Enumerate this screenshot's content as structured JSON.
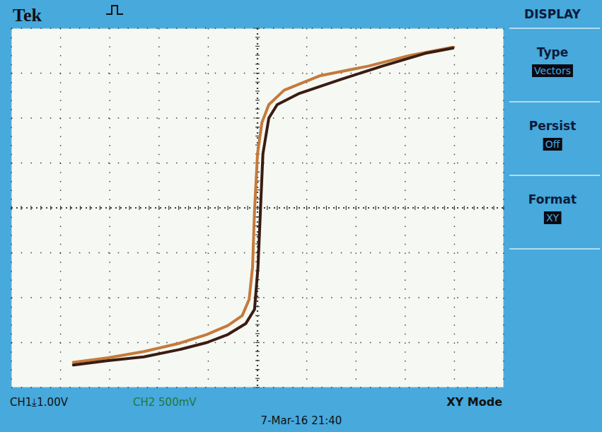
{
  "chart_data": {
    "type": "line",
    "title": "Tek",
    "x_label": "CH1⤓1.00V",
    "y_label": "CH2 500mV",
    "annotations": [
      "XY Mode",
      "7-Mar-16 21:40"
    ],
    "menu": {
      "title": "DISPLAY",
      "items": [
        {
          "label": "Type",
          "value": "Vectors"
        },
        {
          "label": "Persist",
          "value": "Off"
        },
        {
          "label": "Format",
          "value": "XY"
        }
      ]
    },
    "xlim": [
      -5,
      5
    ],
    "ylim": [
      -2,
      2
    ],
    "xticks": [
      -5,
      -4,
      -3,
      -2,
      -1,
      0,
      1,
      2,
      3,
      4,
      5
    ],
    "yticks": [
      -2,
      -1.5,
      -1,
      -0.5,
      0,
      0.5,
      1,
      1.5,
      2
    ],
    "grid": true,
    "tick_labels": false,
    "series": [
      {
        "color": "#c47a3c",
        "x": [
          -3.74,
          -3.03,
          -2.31,
          -1.6,
          -1.03,
          -0.6,
          -0.31,
          -0.17,
          -0.1,
          -0.06,
          0,
          0.09,
          0.23,
          0.54,
          1.26,
          2.26,
          3.11,
          3.97
        ],
        "values": [
          -1.72,
          -1.67,
          -1.6,
          -1.51,
          -1.41,
          -1.31,
          -1.2,
          -1.02,
          -0.66,
          -0.03,
          0.6,
          0.95,
          1.15,
          1.31,
          1.47,
          1.58,
          1.7,
          1.79
        ]
      },
      {
        "color": "#3a1c12",
        "x": [
          -3.74,
          -3.03,
          -2.31,
          -1.6,
          -1.03,
          -0.6,
          -0.24,
          -0.06,
          0.01,
          0.06,
          0.11,
          0.23,
          0.4,
          0.83,
          1.69,
          2.54,
          3.4,
          3.97
        ],
        "values": [
          -1.75,
          -1.7,
          -1.66,
          -1.58,
          -1.5,
          -1.41,
          -1.29,
          -1.13,
          -0.66,
          -0.03,
          0.6,
          1.0,
          1.15,
          1.27,
          1.43,
          1.58,
          1.72,
          1.78
        ]
      }
    ]
  }
}
